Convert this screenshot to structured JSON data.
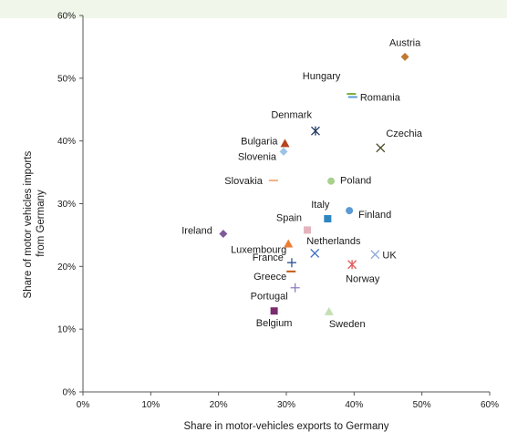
{
  "colors": {
    "top_band": "#f0f7ea",
    "axis": "#555555",
    "label": "#1a1a1a"
  },
  "chart_data": {
    "type": "scatter",
    "title": "",
    "xlabel": "Share in motor-vehicles exports to Germany",
    "ylabel": "Share of motor vehicles imports from Germany",
    "xlim": [
      0,
      60
    ],
    "ylim": [
      0,
      60
    ],
    "x_unit": "%",
    "y_unit": "%",
    "x_ticks": [
      "0%",
      "10%",
      "20%",
      "30%",
      "40%",
      "50%",
      "60%"
    ],
    "y_ticks": [
      "0%",
      "10%",
      "20%",
      "30%",
      "40%",
      "50%",
      "60%"
    ],
    "grid": false,
    "legend": "none",
    "points": [
      {
        "label": "Austria",
        "x": 47.5,
        "y": 53.4,
        "marker": "diamond",
        "color": "#c0792e"
      },
      {
        "label": "Hungary",
        "x": 39.6,
        "y": 47.5,
        "marker": "dash",
        "color": "#78b040"
      },
      {
        "label": "Romania",
        "x": 39.8,
        "y": 47.0,
        "marker": "dash",
        "color": "#5b9bd5"
      },
      {
        "label": "Denmark",
        "x": 34.3,
        "y": 41.6,
        "marker": "star",
        "color": "#1f3864"
      },
      {
        "label": "Czechia",
        "x": 43.9,
        "y": 38.9,
        "marker": "x",
        "color": "#4d4d2a"
      },
      {
        "label": "Bulgaria",
        "x": 29.8,
        "y": 39.6,
        "marker": "triangle",
        "color": "#b5441e"
      },
      {
        "label": "Slovenia",
        "x": 29.6,
        "y": 38.3,
        "marker": "diamond",
        "color": "#9dc3e6"
      },
      {
        "label": "Slovakia",
        "x": 28.1,
        "y": 33.7,
        "marker": "dash",
        "color": "#f4b183"
      },
      {
        "label": "Poland",
        "x": 36.6,
        "y": 33.6,
        "marker": "circle",
        "color": "#a9d18e"
      },
      {
        "label": "Finland",
        "x": 39.3,
        "y": 28.9,
        "marker": "circle",
        "color": "#5b9bd5"
      },
      {
        "label": "Italy",
        "x": 36.1,
        "y": 27.6,
        "marker": "square",
        "color": "#2e86c1"
      },
      {
        "label": "Spain",
        "x": 33.1,
        "y": 25.8,
        "marker": "square",
        "color": "#e4b4bc"
      },
      {
        "label": "Ireland",
        "x": 20.7,
        "y": 25.2,
        "marker": "diamond",
        "color": "#7e5a9b"
      },
      {
        "label": "Luxembourg",
        "x": 30.3,
        "y": 23.6,
        "marker": "triangle",
        "color": "#ed7d31"
      },
      {
        "label": "Netherlands",
        "x": 34.2,
        "y": 22.1,
        "marker": "x",
        "color": "#4472c4"
      },
      {
        "label": "UK",
        "x": 43.1,
        "y": 21.9,
        "marker": "x",
        "color": "#8faadc"
      },
      {
        "label": "France",
        "x": 30.8,
        "y": 20.6,
        "marker": "plus",
        "color": "#2f5597"
      },
      {
        "label": "Norway",
        "x": 39.7,
        "y": 20.3,
        "marker": "star",
        "color": "#e05a5a"
      },
      {
        "label": "Greece",
        "x": 30.7,
        "y": 19.2,
        "marker": "dash",
        "color": "#c55a11"
      },
      {
        "label": "Portugal",
        "x": 31.3,
        "y": 16.6,
        "marker": "plus",
        "color": "#8f7cc4"
      },
      {
        "label": "Belgium",
        "x": 28.2,
        "y": 12.9,
        "marker": "square",
        "color": "#7b2c6f"
      },
      {
        "label": "Sweden",
        "x": 36.3,
        "y": 12.8,
        "marker": "triangle",
        "color": "#c5dfb4"
      }
    ]
  }
}
